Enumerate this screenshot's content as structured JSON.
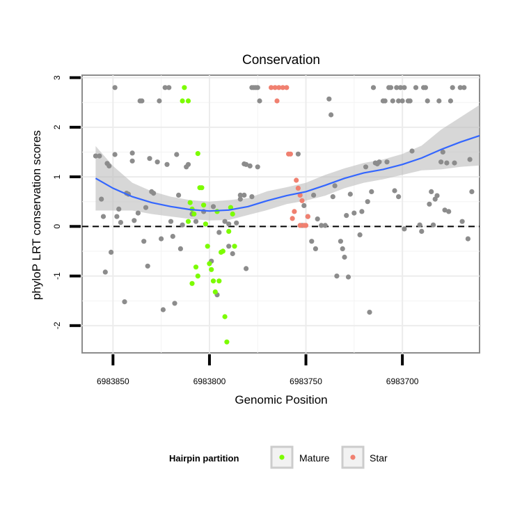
{
  "chart_data": {
    "type": "scatter",
    "title": "Conservation",
    "xlabel": "Genomic Position",
    "ylabel": "phyloP LRT conservation scores",
    "x_reversed": true,
    "xlim": [
      6983866,
      6983660
    ],
    "ylim": [
      -2.55,
      3.05
    ],
    "x_ticks": [
      6983850,
      6983800,
      6983750,
      6983700
    ],
    "x_tick_labels": [
      "6983850",
      "6983800",
      "6983750",
      "6983700"
    ],
    "y_ticks": [
      -2,
      -1,
      0,
      1,
      2,
      3
    ],
    "y_tick_labels": [
      "-2",
      "-1",
      "0",
      "1",
      "2",
      "3"
    ],
    "grid": true,
    "reference_line": {
      "y": 0,
      "style": "dashed"
    },
    "legend": {
      "title": "Hairpin partition",
      "position": "bottom",
      "entries": [
        {
          "label": "Mature",
          "color": "#7cfc00"
        },
        {
          "label": "Star",
          "color": "#f08070"
        }
      ]
    },
    "colors": {
      "other": "#8c8c8c",
      "mature": "#7cfc00",
      "star": "#f08070",
      "smooth": "#3366ff",
      "band": "#bdbdbd"
    },
    "series": [
      {
        "name": "",
        "group": "other",
        "points": [
          [
            6983859,
            1.42
          ],
          [
            6983857,
            1.42
          ],
          [
            6983856,
            0.55
          ],
          [
            6983855,
            0.2
          ],
          [
            6983854,
            -0.92
          ],
          [
            6983853,
            1.27
          ],
          [
            6983852,
            1.22
          ],
          [
            6983851,
            -0.52
          ],
          [
            6983849,
            2.8
          ],
          [
            6983849,
            1.45
          ],
          [
            6983848,
            0.2
          ],
          [
            6983847,
            0.35
          ],
          [
            6983846,
            0.08
          ],
          [
            6983844,
            -1.52
          ],
          [
            6983843,
            0.67
          ],
          [
            6983842,
            0.65
          ],
          [
            6983840,
            1.48
          ],
          [
            6983840,
            1.32
          ],
          [
            6983839,
            0.12
          ],
          [
            6983837,
            0.27
          ],
          [
            6983836,
            2.53
          ],
          [
            6983835,
            2.53
          ],
          [
            6983834,
            -0.3
          ],
          [
            6983833,
            0.38
          ],
          [
            6983832,
            -0.8
          ],
          [
            6983831,
            1.37
          ],
          [
            6983830,
            0.7
          ],
          [
            6983829,
            0.67
          ],
          [
            6983827,
            1.3
          ],
          [
            6983826,
            2.53
          ],
          [
            6983825,
            -0.25
          ],
          [
            6983824,
            -1.68
          ],
          [
            6983823,
            2.8
          ],
          [
            6983822,
            1.25
          ],
          [
            6983821,
            2.8
          ],
          [
            6983820,
            0.1
          ],
          [
            6983819,
            -0.2
          ],
          [
            6983818,
            -1.55
          ],
          [
            6983817,
            1.45
          ],
          [
            6983816,
            0.63
          ],
          [
            6983815,
            -0.45
          ],
          [
            6983814,
            0.03
          ],
          [
            6983812,
            1.2
          ],
          [
            6983811,
            1.25
          ],
          [
            6983809,
            0.25
          ],
          [
            6983807,
            0.1
          ],
          [
            6983803,
            0.3
          ],
          [
            6983798,
            0.4
          ],
          [
            6983790,
            0.05
          ],
          [
            6983786,
            0.07
          ],
          [
            6983784,
            0.63
          ],
          [
            6983782,
            1.26
          ],
          [
            6983781,
            1.25
          ],
          [
            6983781,
            -0.85
          ],
          [
            6983779,
            1.22
          ],
          [
            6983778,
            0.6
          ],
          [
            6983775,
            1.2
          ],
          [
            6983774,
            2.53
          ],
          [
            6983778,
            2.8
          ],
          [
            6983777,
            2.8
          ],
          [
            6983776,
            2.8
          ],
          [
            6983775,
            2.8
          ],
          [
            6983782,
            0.63
          ],
          [
            6983784,
            0.55
          ],
          [
            6983790,
            -0.4
          ],
          [
            6983795,
            -0.12
          ],
          [
            6983792,
            0.1
          ],
          [
            6983788,
            -0.55
          ],
          [
            6983796,
            -1.38
          ],
          [
            6983799,
            -0.7
          ],
          [
            6983754,
            1.46
          ],
          [
            6983752,
            0.02
          ],
          [
            6983751,
            0.42
          ],
          [
            6983749,
            0.2
          ],
          [
            6983747,
            -0.3
          ],
          [
            6983746,
            0.63
          ],
          [
            6983745,
            -0.45
          ],
          [
            6983744,
            0.15
          ],
          [
            6983742,
            0.02
          ],
          [
            6983740,
            0.02
          ],
          [
            6983738,
            2.57
          ],
          [
            6983737,
            2.25
          ],
          [
            6983736,
            0.6
          ],
          [
            6983735,
            0.82
          ],
          [
            6983734,
            -1.0
          ],
          [
            6983732,
            -0.3
          ],
          [
            6983731,
            -0.45
          ],
          [
            6983730,
            -0.62
          ],
          [
            6983729,
            0.22
          ],
          [
            6983728,
            -1.02
          ],
          [
            6983727,
            0.65
          ],
          [
            6983725,
            0.27
          ],
          [
            6983722,
            -0.17
          ],
          [
            6983721,
            0.3
          ],
          [
            6983719,
            1.2
          ],
          [
            6983718,
            0.5
          ],
          [
            6983717,
            -1.73
          ],
          [
            6983716,
            0.7
          ],
          [
            6983715,
            2.8
          ],
          [
            6983714,
            1.28
          ],
          [
            6983713,
            1.26
          ],
          [
            6983712,
            1.3
          ],
          [
            6983710,
            2.53
          ],
          [
            6983709,
            2.53
          ],
          [
            6983708,
            1.3
          ],
          [
            6983707,
            2.8
          ],
          [
            6983706,
            2.8
          ],
          [
            6983705,
            2.53
          ],
          [
            6983703,
            2.8
          ],
          [
            6983702,
            2.53
          ],
          [
            6983701,
            2.8
          ],
          [
            6983700,
            2.53
          ],
          [
            6983699,
            2.8
          ],
          [
            6983704,
            0.72
          ],
          [
            6983702,
            0.6
          ],
          [
            6983699,
            -0.05
          ],
          [
            6983697,
            2.53
          ],
          [
            6983696,
            2.53
          ],
          [
            6983695,
            1.52
          ],
          [
            6983693,
            2.8
          ],
          [
            6983691,
            0.03
          ],
          [
            6983690,
            -0.1
          ],
          [
            6983689,
            2.8
          ],
          [
            6983688,
            2.8
          ],
          [
            6983687,
            2.53
          ],
          [
            6983686,
            0.45
          ],
          [
            6983685,
            0.7
          ],
          [
            6983684,
            0.03
          ],
          [
            6983683,
            0.55
          ],
          [
            6983682,
            0.62
          ],
          [
            6983681,
            2.53
          ],
          [
            6983680,
            1.3
          ],
          [
            6983679,
            1.5
          ],
          [
            6983678,
            0.33
          ],
          [
            6983677,
            1.28
          ],
          [
            6983676,
            0.3
          ],
          [
            6983675,
            2.53
          ],
          [
            6983674,
            2.8
          ],
          [
            6983673,
            1.28
          ],
          [
            6983670,
            2.8
          ],
          [
            6983669,
            0.1
          ],
          [
            6983668,
            2.8
          ],
          [
            6983666,
            -0.25
          ],
          [
            6983665,
            1.35
          ],
          [
            6983664,
            0.7
          ]
        ]
      },
      {
        "name": "Mature",
        "group": "mature",
        "points": [
          [
            6983813,
            2.8
          ],
          [
            6983814,
            2.53
          ],
          [
            6983811,
            2.53
          ],
          [
            6983810,
            0.48
          ],
          [
            6983808,
            0.25
          ],
          [
            6983807,
            -0.82
          ],
          [
            6983806,
            1.47
          ],
          [
            6983805,
            0.78
          ],
          [
            6983804,
            0.78
          ],
          [
            6983803,
            0.43
          ],
          [
            6983802,
            0.05
          ],
          [
            6983801,
            -0.4
          ],
          [
            6983800,
            -0.75
          ],
          [
            6983799,
            -0.87
          ],
          [
            6983798,
            -1.1
          ],
          [
            6983797,
            -1.32
          ],
          [
            6983796,
            0.3
          ],
          [
            6983795,
            -1.1
          ],
          [
            6983794,
            -0.52
          ],
          [
            6983793,
            -0.5
          ],
          [
            6983792,
            -1.82
          ],
          [
            6983791,
            -2.33
          ],
          [
            6983790,
            -0.1
          ],
          [
            6983789,
            0.38
          ],
          [
            6983788,
            0.25
          ],
          [
            6983787,
            -0.4
          ],
          [
            6983811,
            0.1
          ],
          [
            6983809,
            0.35
          ],
          [
            6983806,
            -1.0
          ],
          [
            6983809,
            -1.15
          ]
        ]
      },
      {
        "name": "Star",
        "group": "star",
        "points": [
          [
            6983768,
            2.8
          ],
          [
            6983766,
            2.8
          ],
          [
            6983764,
            2.8
          ],
          [
            6983762,
            2.8
          ],
          [
            6983760,
            2.8
          ],
          [
            6983765,
            2.53
          ],
          [
            6983759,
            1.46
          ],
          [
            6983758,
            1.46
          ],
          [
            6983757,
            0.16
          ],
          [
            6983756,
            0.3
          ],
          [
            6983755,
            0.93
          ],
          [
            6983754,
            0.77
          ],
          [
            6983753,
            0.02
          ],
          [
            6983752,
            0.52
          ],
          [
            6983751,
            0.02
          ],
          [
            6983750,
            0.02
          ],
          [
            6983749,
            0.2
          ],
          [
            6983753,
            0.63
          ]
        ]
      }
    ],
    "smooth_line": {
      "x": [
        6983859,
        6983850,
        6983840,
        6983830,
        6983820,
        6983810,
        6983800,
        6983790,
        6983780,
        6983770,
        6983760,
        6983750,
        6983740,
        6983730,
        6983720,
        6983710,
        6983700,
        6983690,
        6983680,
        6983670,
        6983660
      ],
      "y": [
        0.97,
        0.77,
        0.6,
        0.48,
        0.4,
        0.34,
        0.31,
        0.33,
        0.4,
        0.52,
        0.62,
        0.7,
        0.83,
        0.97,
        1.08,
        1.15,
        1.25,
        1.38,
        1.55,
        1.7,
        1.83
      ]
    },
    "confidence_band": {
      "x": [
        6983859,
        6983850,
        6983840,
        6983830,
        6983820,
        6983810,
        6983800,
        6983790,
        6983780,
        6983770,
        6983760,
        6983750,
        6983740,
        6983730,
        6983720,
        6983710,
        6983700,
        6983690,
        6983680,
        6983670,
        6983660
      ],
      "lower": [
        0.32,
        0.32,
        0.32,
        0.25,
        0.2,
        0.15,
        0.12,
        0.13,
        0.23,
        0.33,
        0.45,
        0.52,
        0.62,
        0.77,
        0.88,
        0.95,
        1.04,
        1.13,
        1.15,
        1.2,
        1.23
      ],
      "upper": [
        1.62,
        1.22,
        0.88,
        0.71,
        0.6,
        0.53,
        0.5,
        0.53,
        0.57,
        0.71,
        0.79,
        0.88,
        1.04,
        1.17,
        1.28,
        1.35,
        1.46,
        1.63,
        1.95,
        2.2,
        2.45
      ]
    }
  }
}
